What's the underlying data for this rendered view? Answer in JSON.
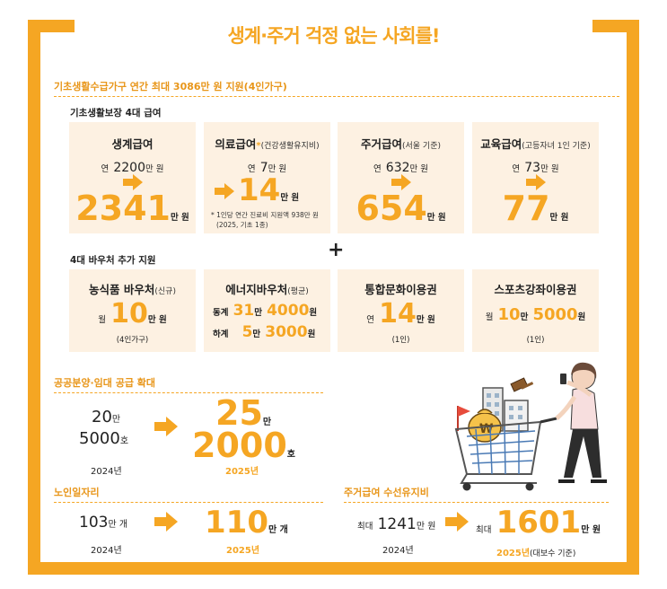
{
  "title": "생계·주거 걱정 없는 사회를!",
  "section1": {
    "header": "기초생활수급가구 연간 최대 3086만 원 지원(4인가구)",
    "benefits_header": "기초생활보장 4대 급여",
    "cards": [
      {
        "title": "생계급여",
        "note": "",
        "from_prefix": "연",
        "from_value": "2200",
        "from_unit": "만 원",
        "to_value": "2341",
        "to_unit": "만 원"
      },
      {
        "title": "의료급여",
        "star": "*",
        "note": "(건강생활유지비)",
        "from_prefix": "연",
        "from_value": "7",
        "from_unit": "만 원",
        "to_value": "14",
        "to_unit": "만 원",
        "footnote_1": "* 1인당 연간 진료비 지원액 938만 원",
        "footnote_2": "(2025, 기초 1종)"
      },
      {
        "title": "주거급여",
        "note": "(서울 기준)",
        "from_prefix": "연",
        "from_value": "632",
        "from_unit": "만 원",
        "to_value": "654",
        "to_unit": "만 원"
      },
      {
        "title": "교육급여",
        "note": "(고등자녀 1인 기준)",
        "from_prefix": "연",
        "from_value": "73",
        "from_unit": "만 원",
        "to_value": "77",
        "to_unit": "만 원"
      }
    ],
    "plus": "+",
    "voucher_header": "4대 바우처 추가 지원",
    "vouchers": [
      {
        "title": "농식품 바우처",
        "note": "(신규)",
        "prefix": "월",
        "value": "10",
        "unit": "만 원",
        "sub": "(4인가구)"
      },
      {
        "title": "에너지바우처",
        "note": "(평균)",
        "winter_label": "동계",
        "winter_v1": "31",
        "winter_u1": "만",
        "winter_v2": "4000",
        "winter_u2": "원",
        "summer_label": "하계",
        "summer_v1": "5",
        "summer_u1": "만",
        "summer_v2": "3000",
        "summer_u2": "원"
      },
      {
        "title": "통합문화이용권",
        "note": "",
        "prefix": "연",
        "value": "14",
        "unit": "만 원",
        "sub": "(1인)"
      },
      {
        "title": "스포츠강좌이용권",
        "note": "",
        "prefix": "월",
        "value": "10",
        "unit_mid": "만",
        "value2": "5000",
        "unit": "원",
        "sub": "(1인)"
      }
    ]
  },
  "housing_supply": {
    "header": "공공분양·임대 공급 확대",
    "from_line1_value": "20",
    "from_line1_unit": "만",
    "from_line2_value": "5000",
    "from_line2_unit": "호",
    "from_year": "2024년",
    "to_line1_value": "25",
    "to_line1_unit": "만",
    "to_line2_value": "2000",
    "to_line2_unit": "호",
    "to_year": "2025년"
  },
  "elderly_jobs": {
    "header": "노인일자리",
    "from_value": "103",
    "from_unit": "만 개",
    "from_year": "2024년",
    "to_value": "110",
    "to_unit": "만 개",
    "to_year": "2025년"
  },
  "housing_repair": {
    "header": "주거급여 수선유지비",
    "from_prefix": "최대",
    "from_value": "1241",
    "from_unit": "만 원",
    "from_year": "2024년",
    "to_prefix": "최대",
    "to_value": "1601",
    "to_unit": "만 원",
    "to_year": "2025년",
    "to_year_note": "(대보수 기준)"
  },
  "colors": {
    "accent": "#f5a623",
    "card_bg": "#fdf1e2",
    "text": "#222222"
  },
  "illustration": {
    "icon": "woman-pushing-shopping-cart-with-money-bag-and-buildings-icon",
    "money_symbol": "₩"
  }
}
